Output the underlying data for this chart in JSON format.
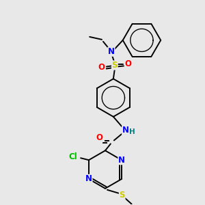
{
  "bg_color": "#e8e8e8",
  "colors": {
    "N": "#0000ff",
    "O": "#ff0000",
    "S": "#cccc00",
    "Cl": "#00bb00",
    "H": "#008080",
    "C": "#000000"
  },
  "lw": 1.4,
  "font_size": 8.5
}
